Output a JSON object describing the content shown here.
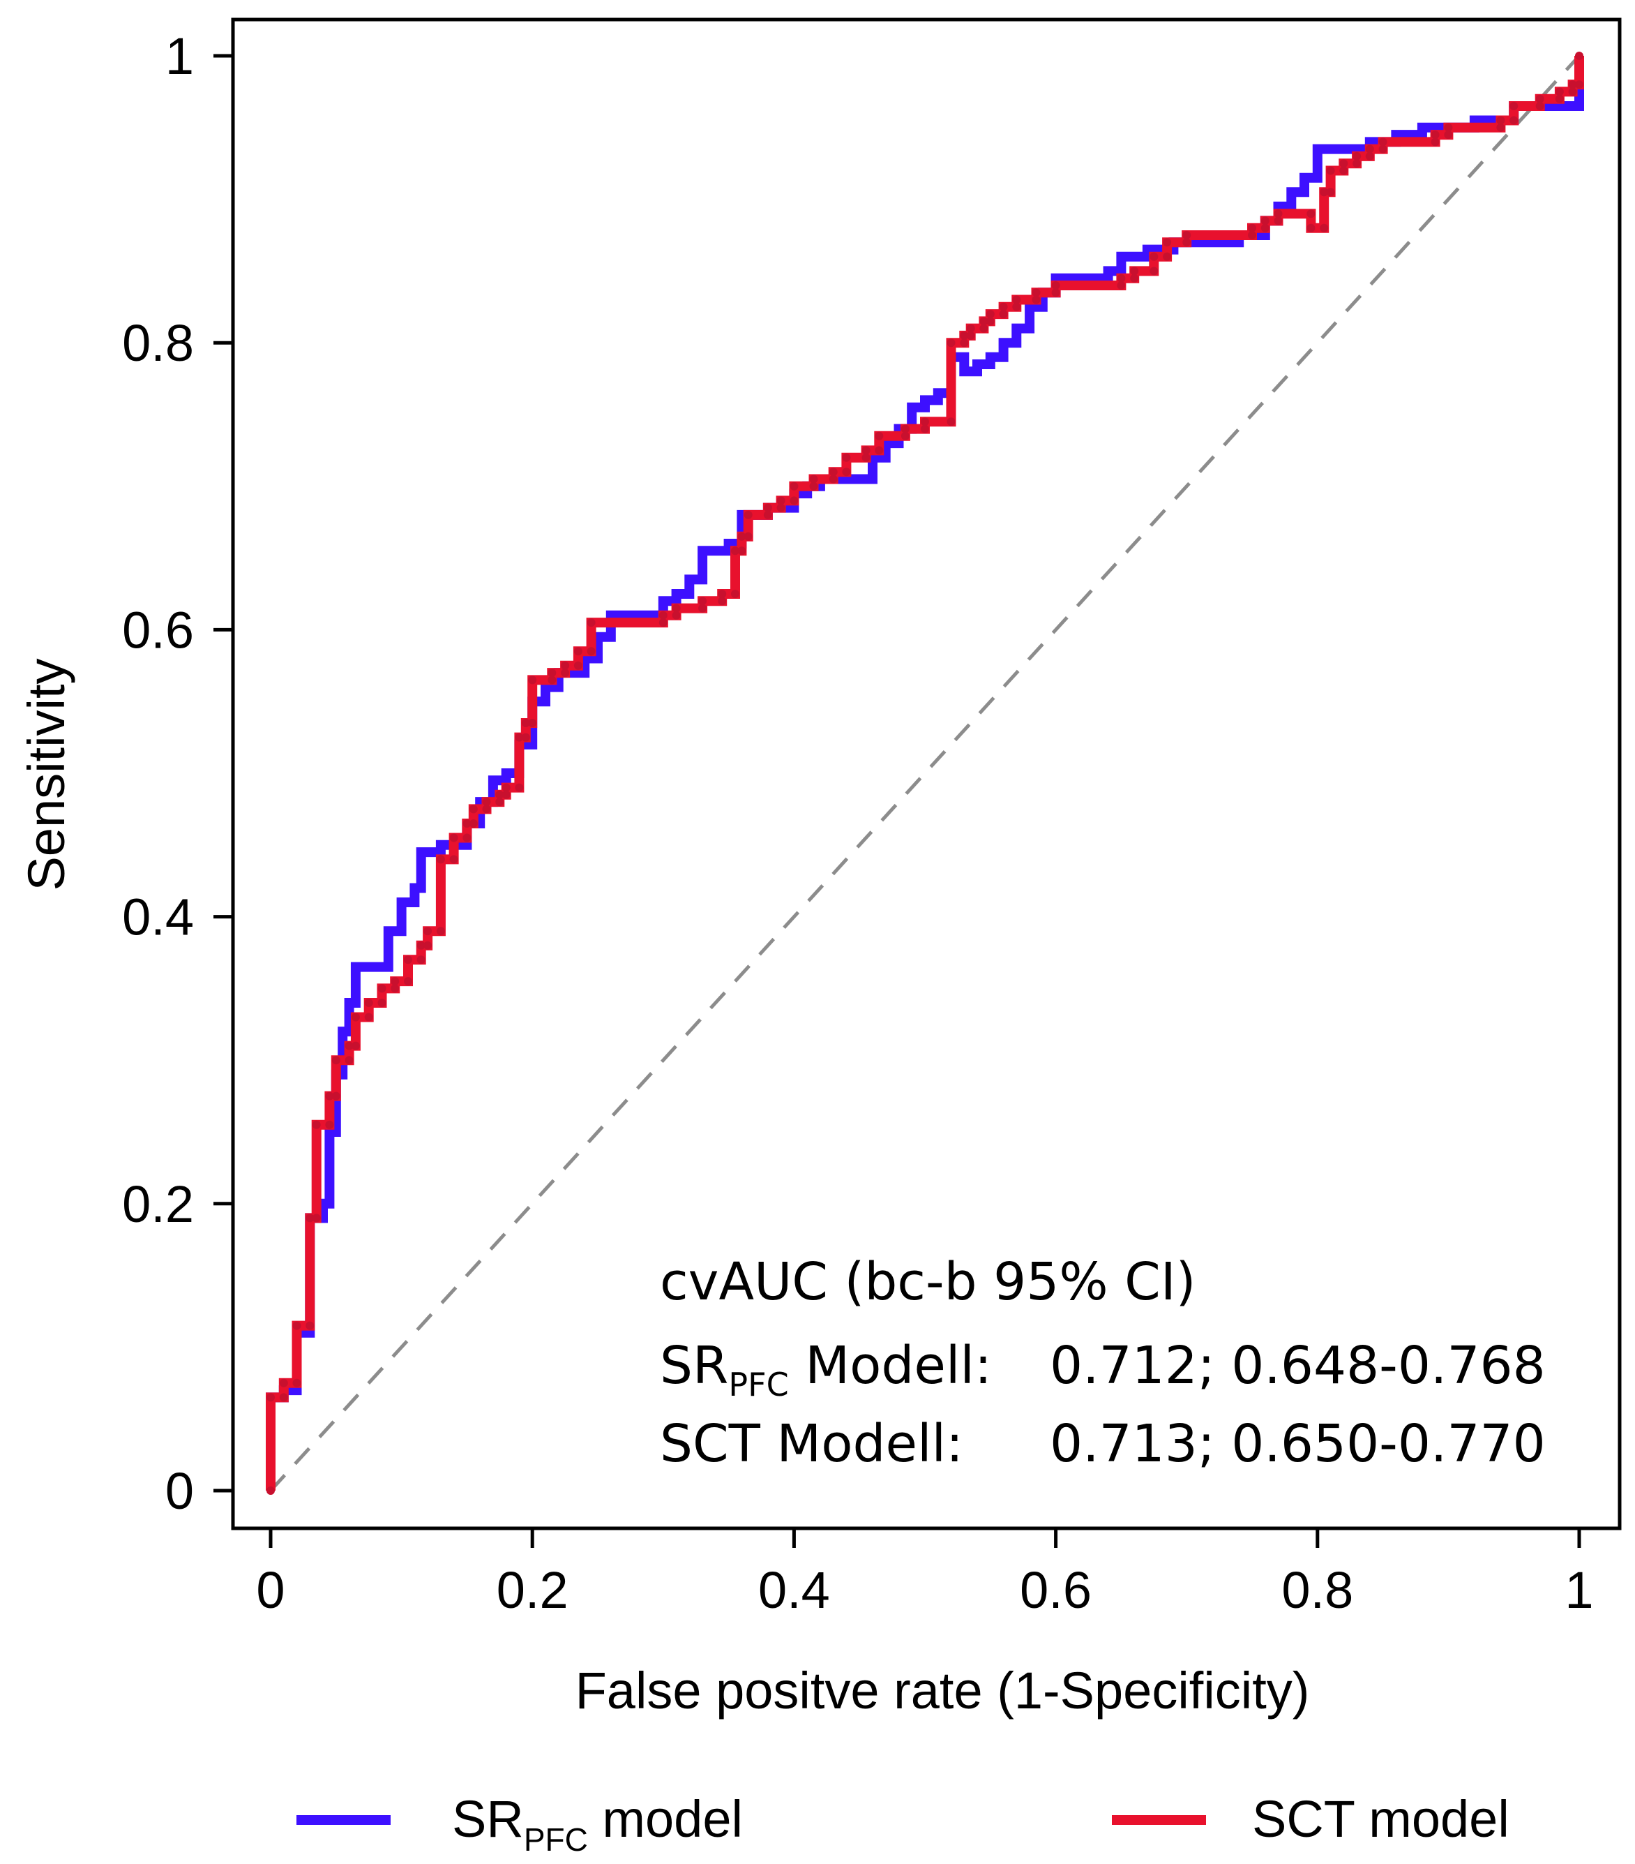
{
  "chart_data": {
    "type": "line",
    "title": "",
    "xlabel": "False positve rate (1-Specificity)",
    "ylabel": "Sensitivity",
    "xlim": [
      0,
      1
    ],
    "ylim": [
      0,
      1
    ],
    "x_ticks": [
      0,
      0.2,
      0.4,
      0.6,
      0.8,
      1
    ],
    "x_tick_labels": [
      "0",
      "0.2",
      "0.4",
      "0.6",
      "0.8",
      "1"
    ],
    "y_ticks": [
      0,
      0.2,
      0.4,
      0.6,
      0.8,
      1
    ],
    "y_tick_labels": [
      "0",
      "0.2",
      "0.4",
      "0.6",
      "0.8",
      "1"
    ],
    "grid": false,
    "legend_position": "bottom",
    "reference_line": {
      "name": "chance",
      "x": [
        0,
        1
      ],
      "y": [
        0,
        1
      ],
      "color": "#8c8c8c",
      "style": "dashed"
    },
    "series": [
      {
        "name": "SR_PFC model",
        "legend_label": {
          "main": "SR",
          "sub": "PFC",
          "rest": " model"
        },
        "color": "#3d10ff",
        "points": [
          [
            0,
            0
          ],
          [
            0,
            0.065
          ],
          [
            0.01,
            0.065
          ],
          [
            0.01,
            0.07
          ],
          [
            0.02,
            0.07
          ],
          [
            0.02,
            0.11
          ],
          [
            0.03,
            0.11
          ],
          [
            0.03,
            0.19
          ],
          [
            0.04,
            0.19
          ],
          [
            0.04,
            0.2
          ],
          [
            0.045,
            0.2
          ],
          [
            0.045,
            0.25
          ],
          [
            0.05,
            0.25
          ],
          [
            0.05,
            0.29
          ],
          [
            0.055,
            0.29
          ],
          [
            0.055,
            0.32
          ],
          [
            0.06,
            0.32
          ],
          [
            0.06,
            0.34
          ],
          [
            0.065,
            0.34
          ],
          [
            0.065,
            0.365
          ],
          [
            0.09,
            0.365
          ],
          [
            0.09,
            0.39
          ],
          [
            0.1,
            0.39
          ],
          [
            0.1,
            0.41
          ],
          [
            0.11,
            0.41
          ],
          [
            0.11,
            0.42
          ],
          [
            0.115,
            0.42
          ],
          [
            0.115,
            0.445
          ],
          [
            0.13,
            0.445
          ],
          [
            0.13,
            0.45
          ],
          [
            0.15,
            0.45
          ],
          [
            0.15,
            0.465
          ],
          [
            0.16,
            0.465
          ],
          [
            0.16,
            0.48
          ],
          [
            0.17,
            0.48
          ],
          [
            0.17,
            0.495
          ],
          [
            0.18,
            0.495
          ],
          [
            0.18,
            0.5
          ],
          [
            0.19,
            0.5
          ],
          [
            0.19,
            0.52
          ],
          [
            0.2,
            0.52
          ],
          [
            0.2,
            0.55
          ],
          [
            0.21,
            0.55
          ],
          [
            0.21,
            0.56
          ],
          [
            0.22,
            0.56
          ],
          [
            0.22,
            0.57
          ],
          [
            0.24,
            0.57
          ],
          [
            0.24,
            0.58
          ],
          [
            0.25,
            0.58
          ],
          [
            0.25,
            0.595
          ],
          [
            0.26,
            0.595
          ],
          [
            0.26,
            0.61
          ],
          [
            0.3,
            0.61
          ],
          [
            0.3,
            0.62
          ],
          [
            0.31,
            0.62
          ],
          [
            0.31,
            0.625
          ],
          [
            0.32,
            0.625
          ],
          [
            0.32,
            0.635
          ],
          [
            0.33,
            0.635
          ],
          [
            0.33,
            0.655
          ],
          [
            0.35,
            0.655
          ],
          [
            0.35,
            0.66
          ],
          [
            0.36,
            0.66
          ],
          [
            0.36,
            0.68
          ],
          [
            0.38,
            0.68
          ],
          [
            0.38,
            0.685
          ],
          [
            0.4,
            0.685
          ],
          [
            0.4,
            0.695
          ],
          [
            0.41,
            0.695
          ],
          [
            0.41,
            0.7
          ],
          [
            0.42,
            0.7
          ],
          [
            0.42,
            0.705
          ],
          [
            0.46,
            0.705
          ],
          [
            0.46,
            0.72
          ],
          [
            0.47,
            0.72
          ],
          [
            0.47,
            0.73
          ],
          [
            0.48,
            0.73
          ],
          [
            0.48,
            0.74
          ],
          [
            0.49,
            0.74
          ],
          [
            0.49,
            0.755
          ],
          [
            0.5,
            0.755
          ],
          [
            0.5,
            0.76
          ],
          [
            0.51,
            0.76
          ],
          [
            0.51,
            0.765
          ],
          [
            0.52,
            0.765
          ],
          [
            0.52,
            0.79
          ],
          [
            0.53,
            0.79
          ],
          [
            0.53,
            0.78
          ],
          [
            0.54,
            0.78
          ],
          [
            0.54,
            0.785
          ],
          [
            0.55,
            0.785
          ],
          [
            0.55,
            0.79
          ],
          [
            0.56,
            0.79
          ],
          [
            0.56,
            0.8
          ],
          [
            0.57,
            0.8
          ],
          [
            0.57,
            0.81
          ],
          [
            0.58,
            0.81
          ],
          [
            0.58,
            0.825
          ],
          [
            0.59,
            0.825
          ],
          [
            0.59,
            0.835
          ],
          [
            0.6,
            0.835
          ],
          [
            0.6,
            0.845
          ],
          [
            0.64,
            0.845
          ],
          [
            0.64,
            0.85
          ],
          [
            0.65,
            0.85
          ],
          [
            0.65,
            0.86
          ],
          [
            0.67,
            0.86
          ],
          [
            0.67,
            0.865
          ],
          [
            0.69,
            0.865
          ],
          [
            0.69,
            0.87
          ],
          [
            0.74,
            0.87
          ],
          [
            0.74,
            0.875
          ],
          [
            0.76,
            0.875
          ],
          [
            0.76,
            0.885
          ],
          [
            0.77,
            0.885
          ],
          [
            0.77,
            0.895
          ],
          [
            0.78,
            0.895
          ],
          [
            0.78,
            0.905
          ],
          [
            0.79,
            0.905
          ],
          [
            0.79,
            0.915
          ],
          [
            0.8,
            0.915
          ],
          [
            0.8,
            0.935
          ],
          [
            0.84,
            0.935
          ],
          [
            0.84,
            0.94
          ],
          [
            0.86,
            0.94
          ],
          [
            0.86,
            0.945
          ],
          [
            0.88,
            0.945
          ],
          [
            0.88,
            0.95
          ],
          [
            0.92,
            0.95
          ],
          [
            0.92,
            0.955
          ],
          [
            0.95,
            0.955
          ],
          [
            0.95,
            0.965
          ],
          [
            1,
            0.965
          ],
          [
            1,
            1
          ]
        ]
      },
      {
        "name": "SCT model",
        "legend_label": {
          "main": "SCT model",
          "sub": "",
          "rest": ""
        },
        "color": "#e8112d",
        "points": [
          [
            0,
            0
          ],
          [
            0,
            0.065
          ],
          [
            0.01,
            0.065
          ],
          [
            0.01,
            0.075
          ],
          [
            0.02,
            0.075
          ],
          [
            0.02,
            0.115
          ],
          [
            0.03,
            0.115
          ],
          [
            0.03,
            0.19
          ],
          [
            0.035,
            0.19
          ],
          [
            0.035,
            0.255
          ],
          [
            0.045,
            0.255
          ],
          [
            0.045,
            0.275
          ],
          [
            0.05,
            0.275
          ],
          [
            0.05,
            0.3
          ],
          [
            0.06,
            0.3
          ],
          [
            0.06,
            0.31
          ],
          [
            0.065,
            0.31
          ],
          [
            0.065,
            0.33
          ],
          [
            0.075,
            0.33
          ],
          [
            0.075,
            0.34
          ],
          [
            0.085,
            0.34
          ],
          [
            0.085,
            0.35
          ],
          [
            0.095,
            0.35
          ],
          [
            0.095,
            0.355
          ],
          [
            0.105,
            0.355
          ],
          [
            0.105,
            0.37
          ],
          [
            0.115,
            0.37
          ],
          [
            0.115,
            0.38
          ],
          [
            0.12,
            0.38
          ],
          [
            0.12,
            0.39
          ],
          [
            0.13,
            0.39
          ],
          [
            0.13,
            0.44
          ],
          [
            0.14,
            0.44
          ],
          [
            0.14,
            0.455
          ],
          [
            0.15,
            0.455
          ],
          [
            0.15,
            0.465
          ],
          [
            0.155,
            0.465
          ],
          [
            0.155,
            0.475
          ],
          [
            0.165,
            0.475
          ],
          [
            0.165,
            0.48
          ],
          [
            0.175,
            0.48
          ],
          [
            0.175,
            0.485
          ],
          [
            0.18,
            0.485
          ],
          [
            0.18,
            0.49
          ],
          [
            0.19,
            0.49
          ],
          [
            0.19,
            0.525
          ],
          [
            0.195,
            0.525
          ],
          [
            0.195,
            0.535
          ],
          [
            0.2,
            0.535
          ],
          [
            0.2,
            0.565
          ],
          [
            0.215,
            0.565
          ],
          [
            0.215,
            0.57
          ],
          [
            0.225,
            0.57
          ],
          [
            0.225,
            0.575
          ],
          [
            0.235,
            0.575
          ],
          [
            0.235,
            0.585
          ],
          [
            0.245,
            0.585
          ],
          [
            0.245,
            0.605
          ],
          [
            0.3,
            0.605
          ],
          [
            0.3,
            0.61
          ],
          [
            0.31,
            0.61
          ],
          [
            0.31,
            0.615
          ],
          [
            0.33,
            0.615
          ],
          [
            0.33,
            0.62
          ],
          [
            0.345,
            0.62
          ],
          [
            0.345,
            0.625
          ],
          [
            0.355,
            0.625
          ],
          [
            0.355,
            0.655
          ],
          [
            0.36,
            0.655
          ],
          [
            0.36,
            0.665
          ],
          [
            0.365,
            0.665
          ],
          [
            0.365,
            0.68
          ],
          [
            0.38,
            0.68
          ],
          [
            0.38,
            0.685
          ],
          [
            0.39,
            0.685
          ],
          [
            0.39,
            0.69
          ],
          [
            0.4,
            0.69
          ],
          [
            0.4,
            0.7
          ],
          [
            0.415,
            0.7
          ],
          [
            0.415,
            0.705
          ],
          [
            0.43,
            0.705
          ],
          [
            0.43,
            0.71
          ],
          [
            0.44,
            0.71
          ],
          [
            0.44,
            0.72
          ],
          [
            0.455,
            0.72
          ],
          [
            0.455,
            0.725
          ],
          [
            0.465,
            0.725
          ],
          [
            0.465,
            0.735
          ],
          [
            0.485,
            0.735
          ],
          [
            0.485,
            0.74
          ],
          [
            0.5,
            0.74
          ],
          [
            0.5,
            0.745
          ],
          [
            0.52,
            0.745
          ],
          [
            0.52,
            0.8
          ],
          [
            0.53,
            0.8
          ],
          [
            0.53,
            0.805
          ],
          [
            0.535,
            0.805
          ],
          [
            0.535,
            0.81
          ],
          [
            0.545,
            0.81
          ],
          [
            0.545,
            0.815
          ],
          [
            0.55,
            0.815
          ],
          [
            0.55,
            0.82
          ],
          [
            0.56,
            0.82
          ],
          [
            0.56,
            0.825
          ],
          [
            0.57,
            0.825
          ],
          [
            0.57,
            0.83
          ],
          [
            0.585,
            0.83
          ],
          [
            0.585,
            0.835
          ],
          [
            0.6,
            0.835
          ],
          [
            0.6,
            0.84
          ],
          [
            0.65,
            0.84
          ],
          [
            0.65,
            0.845
          ],
          [
            0.66,
            0.845
          ],
          [
            0.66,
            0.85
          ],
          [
            0.675,
            0.85
          ],
          [
            0.675,
            0.86
          ],
          [
            0.685,
            0.86
          ],
          [
            0.685,
            0.87
          ],
          [
            0.7,
            0.87
          ],
          [
            0.7,
            0.875
          ],
          [
            0.75,
            0.875
          ],
          [
            0.75,
            0.88
          ],
          [
            0.76,
            0.88
          ],
          [
            0.76,
            0.885
          ],
          [
            0.77,
            0.885
          ],
          [
            0.77,
            0.89
          ],
          [
            0.795,
            0.89
          ],
          [
            0.795,
            0.88
          ],
          [
            0.805,
            0.88
          ],
          [
            0.805,
            0.905
          ],
          [
            0.81,
            0.905
          ],
          [
            0.81,
            0.92
          ],
          [
            0.82,
            0.92
          ],
          [
            0.82,
            0.925
          ],
          [
            0.83,
            0.925
          ],
          [
            0.83,
            0.93
          ],
          [
            0.84,
            0.93
          ],
          [
            0.84,
            0.935
          ],
          [
            0.85,
            0.935
          ],
          [
            0.85,
            0.94
          ],
          [
            0.89,
            0.94
          ],
          [
            0.89,
            0.945
          ],
          [
            0.9,
            0.945
          ],
          [
            0.9,
            0.95
          ],
          [
            0.94,
            0.95
          ],
          [
            0.94,
            0.955
          ],
          [
            0.95,
            0.955
          ],
          [
            0.95,
            0.965
          ],
          [
            0.97,
            0.965
          ],
          [
            0.97,
            0.97
          ],
          [
            0.985,
            0.97
          ],
          [
            0.985,
            0.975
          ],
          [
            0.995,
            0.975
          ],
          [
            0.995,
            0.98
          ],
          [
            1,
            0.98
          ],
          [
            1,
            1
          ]
        ]
      }
    ],
    "annotation": {
      "header": "cvAUC (bc-b 95% CI)",
      "rows": [
        {
          "label_main": "SR",
          "label_sub": "PFC",
          "label_rest": " Modell:",
          "value": "0.712; 0.648-0.768"
        },
        {
          "label_main": "SCT Modell:",
          "label_sub": "",
          "label_rest": "",
          "value": "0.713; 0.650-0.770"
        }
      ]
    }
  }
}
